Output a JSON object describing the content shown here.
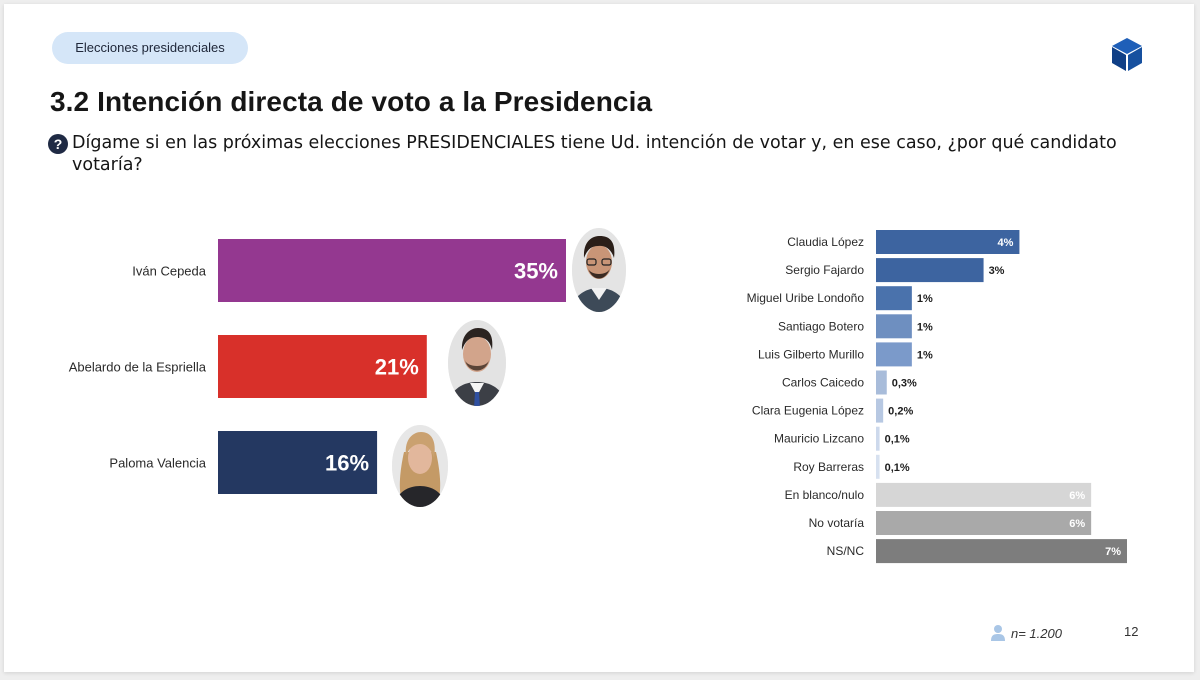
{
  "header": {
    "section_pill": "Elecciones presidenciales",
    "title": "3.2 Intención directa de voto a la Presidencia",
    "question": "Dígame si en las próximas elecciones PRESIDENCIALES tiene Ud. intención de votar y, en ese caso, ¿por qué candidato votaría?",
    "question_icon": "?"
  },
  "footer": {
    "sample": "n= 1.200",
    "page": "12"
  },
  "chart_data": [
    {
      "type": "bar",
      "orientation": "horizontal",
      "categories": [
        "Iván Cepeda",
        "Abelardo de la Espriella",
        "Paloma Valencia"
      ],
      "values": [
        35,
        21,
        16
      ],
      "labels": [
        "35%",
        "21%",
        "16%"
      ],
      "colors": [
        "#943890",
        "#d8302a",
        "#243861"
      ],
      "xlim": [
        0,
        35
      ],
      "grid": false,
      "photos": [
        "candidate-photo-cepeda",
        "candidate-photo-espriella",
        "candidate-photo-valencia"
      ]
    },
    {
      "type": "bar",
      "orientation": "horizontal",
      "categories": [
        "Claudia López",
        "Sergio Fajardo",
        "Miguel Uribe Londoño",
        "Santiago Botero",
        "Luis Gilberto Murillo",
        "Carlos Caicedo",
        "Clara Eugenia López",
        "Mauricio Lizcano",
        "Roy Barreras",
        "En blanco/nulo",
        "No votaría",
        "NS/NC"
      ],
      "values": [
        4,
        3,
        1,
        1,
        1,
        0.3,
        0.2,
        0.1,
        0.1,
        6,
        6,
        7
      ],
      "labels": [
        "4%",
        "3%",
        "1%",
        "1%",
        "1%",
        "0,3%",
        "0,2%",
        "0,1%",
        "0,1%",
        "6%",
        "6%",
        "7%"
      ],
      "colors": [
        "#3d64a0",
        "#3d64a0",
        "#4a72ac",
        "#6e8fc0",
        "#7b9aca",
        "#a8bcda",
        "#b7c8e2",
        "#cdd9ec",
        "#d7e1f0",
        "#d6d6d6",
        "#a9a9a9",
        "#7d7d7d"
      ],
      "label_inside": [
        true,
        false,
        false,
        false,
        false,
        false,
        false,
        false,
        false,
        true,
        true,
        true
      ],
      "xlim": [
        0,
        7
      ],
      "grid": false
    }
  ]
}
